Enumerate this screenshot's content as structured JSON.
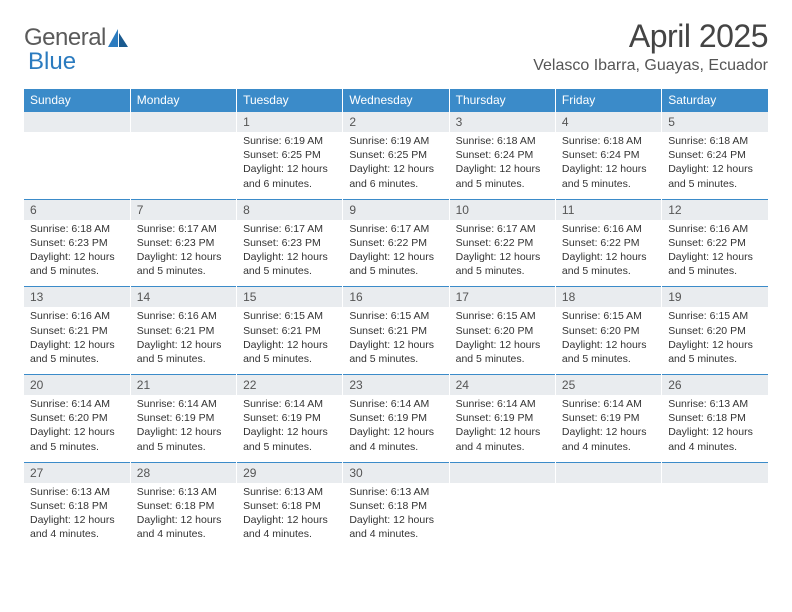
{
  "branding": {
    "logo_text_left": "General",
    "logo_text_right": "Blue",
    "logo_text_color": "#5a5a5a",
    "logo_accent_color": "#2b7bbf"
  },
  "header": {
    "month_title": "April 2025",
    "location": "Velasco Ibarra, Guayas, Ecuador"
  },
  "style": {
    "header_bg": "#3b8bc9",
    "header_text": "#ffffff",
    "daynum_bg": "#e9ecef",
    "row_border": "#3b8bc9",
    "body_text": "#333333",
    "page_bg": "#ffffff"
  },
  "day_headers": [
    "Sunday",
    "Monday",
    "Tuesday",
    "Wednesday",
    "Thursday",
    "Friday",
    "Saturday"
  ],
  "weeks": [
    [
      null,
      null,
      {
        "n": "1",
        "sunrise": "Sunrise: 6:19 AM",
        "sunset": "Sunset: 6:25 PM",
        "day1": "Daylight: 12 hours",
        "day2": "and 6 minutes."
      },
      {
        "n": "2",
        "sunrise": "Sunrise: 6:19 AM",
        "sunset": "Sunset: 6:25 PM",
        "day1": "Daylight: 12 hours",
        "day2": "and 6 minutes."
      },
      {
        "n": "3",
        "sunrise": "Sunrise: 6:18 AM",
        "sunset": "Sunset: 6:24 PM",
        "day1": "Daylight: 12 hours",
        "day2": "and 5 minutes."
      },
      {
        "n": "4",
        "sunrise": "Sunrise: 6:18 AM",
        "sunset": "Sunset: 6:24 PM",
        "day1": "Daylight: 12 hours",
        "day2": "and 5 minutes."
      },
      {
        "n": "5",
        "sunrise": "Sunrise: 6:18 AM",
        "sunset": "Sunset: 6:24 PM",
        "day1": "Daylight: 12 hours",
        "day2": "and 5 minutes."
      }
    ],
    [
      {
        "n": "6",
        "sunrise": "Sunrise: 6:18 AM",
        "sunset": "Sunset: 6:23 PM",
        "day1": "Daylight: 12 hours",
        "day2": "and 5 minutes."
      },
      {
        "n": "7",
        "sunrise": "Sunrise: 6:17 AM",
        "sunset": "Sunset: 6:23 PM",
        "day1": "Daylight: 12 hours",
        "day2": "and 5 minutes."
      },
      {
        "n": "8",
        "sunrise": "Sunrise: 6:17 AM",
        "sunset": "Sunset: 6:23 PM",
        "day1": "Daylight: 12 hours",
        "day2": "and 5 minutes."
      },
      {
        "n": "9",
        "sunrise": "Sunrise: 6:17 AM",
        "sunset": "Sunset: 6:22 PM",
        "day1": "Daylight: 12 hours",
        "day2": "and 5 minutes."
      },
      {
        "n": "10",
        "sunrise": "Sunrise: 6:17 AM",
        "sunset": "Sunset: 6:22 PM",
        "day1": "Daylight: 12 hours",
        "day2": "and 5 minutes."
      },
      {
        "n": "11",
        "sunrise": "Sunrise: 6:16 AM",
        "sunset": "Sunset: 6:22 PM",
        "day1": "Daylight: 12 hours",
        "day2": "and 5 minutes."
      },
      {
        "n": "12",
        "sunrise": "Sunrise: 6:16 AM",
        "sunset": "Sunset: 6:22 PM",
        "day1": "Daylight: 12 hours",
        "day2": "and 5 minutes."
      }
    ],
    [
      {
        "n": "13",
        "sunrise": "Sunrise: 6:16 AM",
        "sunset": "Sunset: 6:21 PM",
        "day1": "Daylight: 12 hours",
        "day2": "and 5 minutes."
      },
      {
        "n": "14",
        "sunrise": "Sunrise: 6:16 AM",
        "sunset": "Sunset: 6:21 PM",
        "day1": "Daylight: 12 hours",
        "day2": "and 5 minutes."
      },
      {
        "n": "15",
        "sunrise": "Sunrise: 6:15 AM",
        "sunset": "Sunset: 6:21 PM",
        "day1": "Daylight: 12 hours",
        "day2": "and 5 minutes."
      },
      {
        "n": "16",
        "sunrise": "Sunrise: 6:15 AM",
        "sunset": "Sunset: 6:21 PM",
        "day1": "Daylight: 12 hours",
        "day2": "and 5 minutes."
      },
      {
        "n": "17",
        "sunrise": "Sunrise: 6:15 AM",
        "sunset": "Sunset: 6:20 PM",
        "day1": "Daylight: 12 hours",
        "day2": "and 5 minutes."
      },
      {
        "n": "18",
        "sunrise": "Sunrise: 6:15 AM",
        "sunset": "Sunset: 6:20 PM",
        "day1": "Daylight: 12 hours",
        "day2": "and 5 minutes."
      },
      {
        "n": "19",
        "sunrise": "Sunrise: 6:15 AM",
        "sunset": "Sunset: 6:20 PM",
        "day1": "Daylight: 12 hours",
        "day2": "and 5 minutes."
      }
    ],
    [
      {
        "n": "20",
        "sunrise": "Sunrise: 6:14 AM",
        "sunset": "Sunset: 6:20 PM",
        "day1": "Daylight: 12 hours",
        "day2": "and 5 minutes."
      },
      {
        "n": "21",
        "sunrise": "Sunrise: 6:14 AM",
        "sunset": "Sunset: 6:19 PM",
        "day1": "Daylight: 12 hours",
        "day2": "and 5 minutes."
      },
      {
        "n": "22",
        "sunrise": "Sunrise: 6:14 AM",
        "sunset": "Sunset: 6:19 PM",
        "day1": "Daylight: 12 hours",
        "day2": "and 5 minutes."
      },
      {
        "n": "23",
        "sunrise": "Sunrise: 6:14 AM",
        "sunset": "Sunset: 6:19 PM",
        "day1": "Daylight: 12 hours",
        "day2": "and 4 minutes."
      },
      {
        "n": "24",
        "sunrise": "Sunrise: 6:14 AM",
        "sunset": "Sunset: 6:19 PM",
        "day1": "Daylight: 12 hours",
        "day2": "and 4 minutes."
      },
      {
        "n": "25",
        "sunrise": "Sunrise: 6:14 AM",
        "sunset": "Sunset: 6:19 PM",
        "day1": "Daylight: 12 hours",
        "day2": "and 4 minutes."
      },
      {
        "n": "26",
        "sunrise": "Sunrise: 6:13 AM",
        "sunset": "Sunset: 6:18 PM",
        "day1": "Daylight: 12 hours",
        "day2": "and 4 minutes."
      }
    ],
    [
      {
        "n": "27",
        "sunrise": "Sunrise: 6:13 AM",
        "sunset": "Sunset: 6:18 PM",
        "day1": "Daylight: 12 hours",
        "day2": "and 4 minutes."
      },
      {
        "n": "28",
        "sunrise": "Sunrise: 6:13 AM",
        "sunset": "Sunset: 6:18 PM",
        "day1": "Daylight: 12 hours",
        "day2": "and 4 minutes."
      },
      {
        "n": "29",
        "sunrise": "Sunrise: 6:13 AM",
        "sunset": "Sunset: 6:18 PM",
        "day1": "Daylight: 12 hours",
        "day2": "and 4 minutes."
      },
      {
        "n": "30",
        "sunrise": "Sunrise: 6:13 AM",
        "sunset": "Sunset: 6:18 PM",
        "day1": "Daylight: 12 hours",
        "day2": "and 4 minutes."
      },
      null,
      null,
      null
    ]
  ]
}
